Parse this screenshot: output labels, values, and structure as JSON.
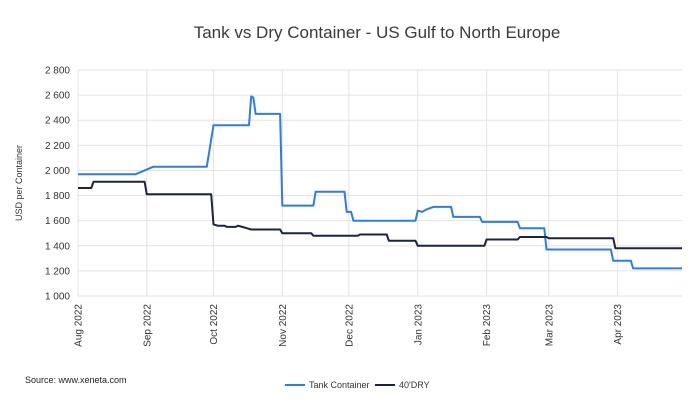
{
  "source_text": "Source: www.xeneta.com",
  "chart_data": {
    "type": "line",
    "title": "Tank vs Dry Container - US Gulf to North Europe",
    "xlabel": "",
    "ylabel": "USD per Container",
    "ylim": [
      1000,
      2800
    ],
    "yticks": [
      1000,
      1200,
      1400,
      1600,
      1800,
      2000,
      2200,
      2400,
      2600,
      2800
    ],
    "ytick_labels": [
      "1 000",
      "1 200",
      "1 400",
      "1 600",
      "1 800",
      "2 000",
      "2 200",
      "2 400",
      "2 600",
      "2 800"
    ],
    "xlim": [
      "2022-08-01",
      "2023-04-30"
    ],
    "xticks": [
      "2022-08-01",
      "2022-09-01",
      "2022-10-01",
      "2022-11-01",
      "2022-12-01",
      "2023-01-01",
      "2023-02-01",
      "2023-03-01",
      "2023-04-01"
    ],
    "xtick_labels": [
      "Aug 2022",
      "Sep 2022",
      "Oct 2022",
      "Nov 2022",
      "Dec 2022",
      "Jan 2023",
      "Feb 2023",
      "Mar 2023",
      "Apr 2023"
    ],
    "grid": true,
    "legend_position": "bottom-center",
    "series": [
      {
        "name": "Tank Container",
        "color": "#2b7de9",
        "points": [
          [
            "2022-08-01",
            1970
          ],
          [
            "2022-08-27",
            1970
          ],
          [
            "2022-09-04",
            2030
          ],
          [
            "2022-09-28",
            2030
          ],
          [
            "2022-10-01",
            2360
          ],
          [
            "2022-10-17",
            2360
          ],
          [
            "2022-10-18",
            2590
          ],
          [
            "2022-10-19",
            2580
          ],
          [
            "2022-10-20",
            2450
          ],
          [
            "2022-10-31",
            2450
          ],
          [
            "2022-11-01",
            1720
          ],
          [
            "2022-11-15",
            1720
          ],
          [
            "2022-11-16",
            1830
          ],
          [
            "2022-11-29",
            1830
          ],
          [
            "2022-11-30",
            1670
          ],
          [
            "2022-12-02",
            1670
          ],
          [
            "2022-12-03",
            1600
          ],
          [
            "2022-12-31",
            1600
          ],
          [
            "2023-01-01",
            1680
          ],
          [
            "2023-01-03",
            1670
          ],
          [
            "2023-01-05",
            1690
          ],
          [
            "2023-01-08",
            1710
          ],
          [
            "2023-01-16",
            1710
          ],
          [
            "2023-01-17",
            1630
          ],
          [
            "2023-01-29",
            1630
          ],
          [
            "2023-01-30",
            1590
          ],
          [
            "2023-02-15",
            1590
          ],
          [
            "2023-02-16",
            1540
          ],
          [
            "2023-02-27",
            1540
          ],
          [
            "2023-02-28",
            1370
          ],
          [
            "2023-03-29",
            1370
          ],
          [
            "2023-03-30",
            1280
          ],
          [
            "2023-04-07",
            1280
          ],
          [
            "2023-04-08",
            1220
          ],
          [
            "2023-04-30",
            1220
          ]
        ]
      },
      {
        "name": "40'DRY",
        "color": "#1c2340",
        "points": [
          [
            "2022-08-01",
            1860
          ],
          [
            "2022-08-07",
            1860
          ],
          [
            "2022-08-08",
            1910
          ],
          [
            "2022-08-31",
            1910
          ],
          [
            "2022-09-01",
            1810
          ],
          [
            "2022-09-30",
            1810
          ],
          [
            "2022-10-01",
            1570
          ],
          [
            "2022-10-03",
            1560
          ],
          [
            "2022-10-06",
            1560
          ],
          [
            "2022-10-07",
            1550
          ],
          [
            "2022-10-11",
            1550
          ],
          [
            "2022-10-12",
            1560
          ],
          [
            "2022-10-14",
            1550
          ],
          [
            "2022-10-16",
            1540
          ],
          [
            "2022-10-18",
            1530
          ],
          [
            "2022-10-31",
            1530
          ],
          [
            "2022-11-01",
            1500
          ],
          [
            "2022-11-14",
            1500
          ],
          [
            "2022-11-15",
            1480
          ],
          [
            "2022-12-05",
            1480
          ],
          [
            "2022-12-06",
            1490
          ],
          [
            "2022-12-18",
            1490
          ],
          [
            "2022-12-19",
            1440
          ],
          [
            "2022-12-31",
            1440
          ],
          [
            "2023-01-01",
            1400
          ],
          [
            "2023-01-31",
            1400
          ],
          [
            "2023-02-01",
            1450
          ],
          [
            "2023-02-15",
            1450
          ],
          [
            "2023-02-16",
            1470
          ],
          [
            "2023-02-28",
            1470
          ],
          [
            "2023-03-01",
            1460
          ],
          [
            "2023-03-30",
            1460
          ],
          [
            "2023-03-31",
            1380
          ],
          [
            "2023-04-30",
            1380
          ]
        ]
      }
    ]
  }
}
